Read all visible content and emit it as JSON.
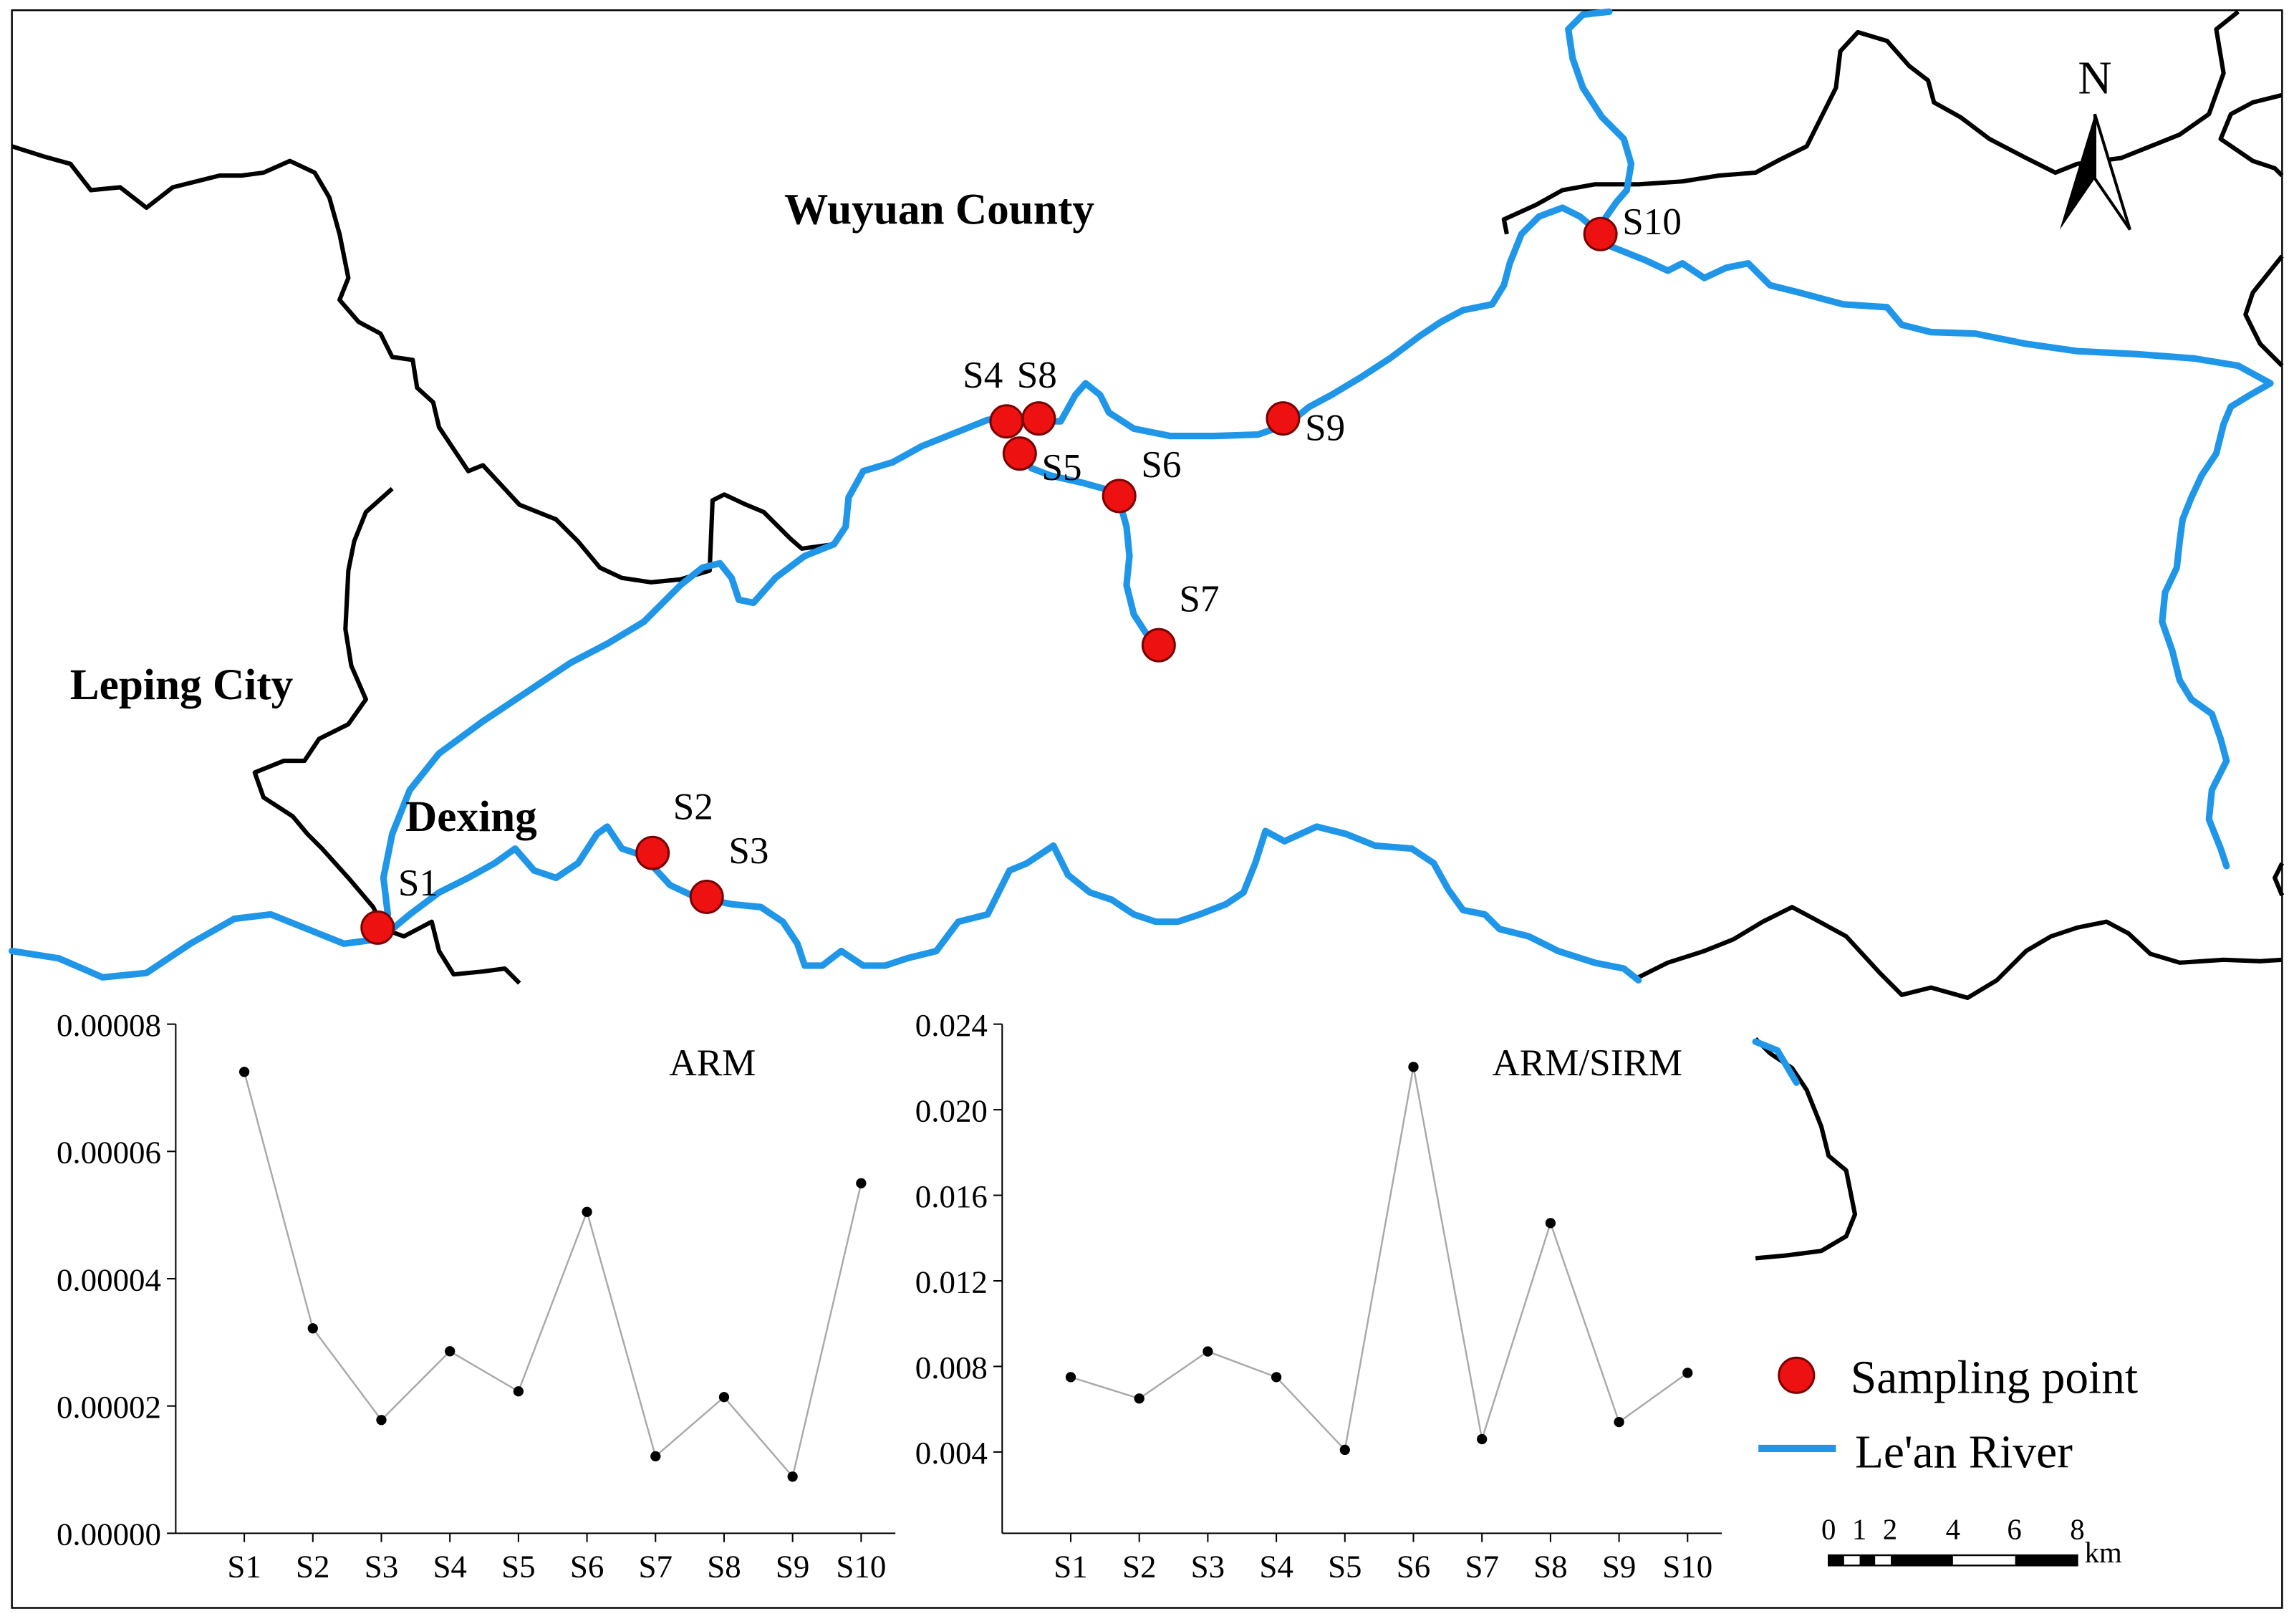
{
  "map": {
    "regions": {
      "wuyuan": "Wuyuan County",
      "leping": "Leping City",
      "dexing": "Dexing"
    },
    "north_label": "N",
    "sampling_points": [
      {
        "id": "S1"
      },
      {
        "id": "S2"
      },
      {
        "id": "S3"
      },
      {
        "id": "S4"
      },
      {
        "id": "S5"
      },
      {
        "id": "S6"
      },
      {
        "id": "S7"
      },
      {
        "id": "S8"
      },
      {
        "id": "S9"
      },
      {
        "id": "S10"
      }
    ],
    "legend": {
      "sampling_point": "Sampling point",
      "river": "Le'an River"
    },
    "scale_bar": {
      "ticks": [
        "0",
        "1",
        "2",
        "4",
        "6",
        "8"
      ],
      "unit": "km"
    },
    "colors": {
      "river": "#1f96e8",
      "boundary": "#000000",
      "point_fill": "#ee1111",
      "point_stroke": "#7a0000"
    }
  },
  "chart_data": [
    {
      "type": "line",
      "title": "ARM",
      "categories": [
        "S1",
        "S2",
        "S3",
        "S4",
        "S5",
        "S6",
        "S7",
        "S8",
        "S9",
        "S10"
      ],
      "values": [
        7.25e-05,
        3.22e-05,
        1.78e-05,
        2.86e-05,
        2.23e-05,
        5.05e-05,
        1.21e-05,
        2.14e-05,
        8.9e-06,
        5.5e-05
      ],
      "ylim": [
        0,
        8e-05
      ],
      "yticks": [
        "0.00000",
        "0.00002",
        "0.00004",
        "0.00006",
        "0.00008"
      ],
      "ytick_values": [
        0,
        2e-05,
        4e-05,
        6e-05,
        8e-05
      ]
    },
    {
      "type": "line",
      "title": "ARM/SIRM",
      "categories": [
        "S1",
        "S2",
        "S3",
        "S4",
        "S5",
        "S6",
        "S7",
        "S8",
        "S9",
        "S10"
      ],
      "values": [
        0.0075,
        0.0065,
        0.0087,
        0.0075,
        0.0041,
        0.022,
        0.0046,
        0.0147,
        0.0054,
        0.0077
      ],
      "ylim": [
        0.0002,
        0.024
      ],
      "yticks": [
        "0.004",
        "0.008",
        "0.012",
        "0.016",
        "0.020",
        "0.024"
      ],
      "ytick_values": [
        0.004,
        0.008,
        0.012,
        0.016,
        0.02,
        0.024
      ]
    }
  ]
}
